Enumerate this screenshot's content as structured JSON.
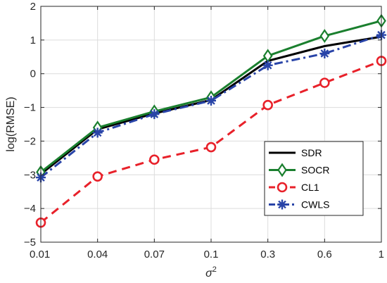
{
  "chart_data": {
    "type": "line",
    "categories": [
      "0.01",
      "0.04",
      "0.07",
      "0.1",
      "0.3",
      "0.6",
      "1"
    ],
    "xlabel": "σ²",
    "xlabel_base": "σ",
    "xlabel_sup": "2",
    "ylabel": "log(RMSE)",
    "ylim": [
      -5,
      2
    ],
    "yticks": [
      -5,
      -4,
      -3,
      -2,
      -1,
      0,
      1,
      2
    ],
    "grid": true,
    "legend_position": "bottom-right",
    "series": [
      {
        "name": "SDR",
        "color": "#000000",
        "dash": "solid",
        "marker": "none",
        "values": [
          -2.98,
          -1.65,
          -1.18,
          -0.78,
          0.38,
          0.82,
          1.1
        ]
      },
      {
        "name": "SOCR",
        "color": "#1a7f2e",
        "dash": "solid",
        "marker": "diamond",
        "values": [
          -2.92,
          -1.6,
          -1.12,
          -0.7,
          0.53,
          1.12,
          1.57
        ]
      },
      {
        "name": "CL1",
        "color": "#e8212a",
        "dash": "dashed",
        "marker": "circle",
        "values": [
          -4.42,
          -3.05,
          -2.55,
          -2.18,
          -0.93,
          -0.27,
          0.38
        ]
      },
      {
        "name": "CWLS",
        "color": "#2944a8",
        "dash": "dashdot",
        "marker": "asterisk",
        "values": [
          -3.08,
          -1.75,
          -1.2,
          -0.8,
          0.25,
          0.6,
          1.15
        ]
      }
    ]
  }
}
